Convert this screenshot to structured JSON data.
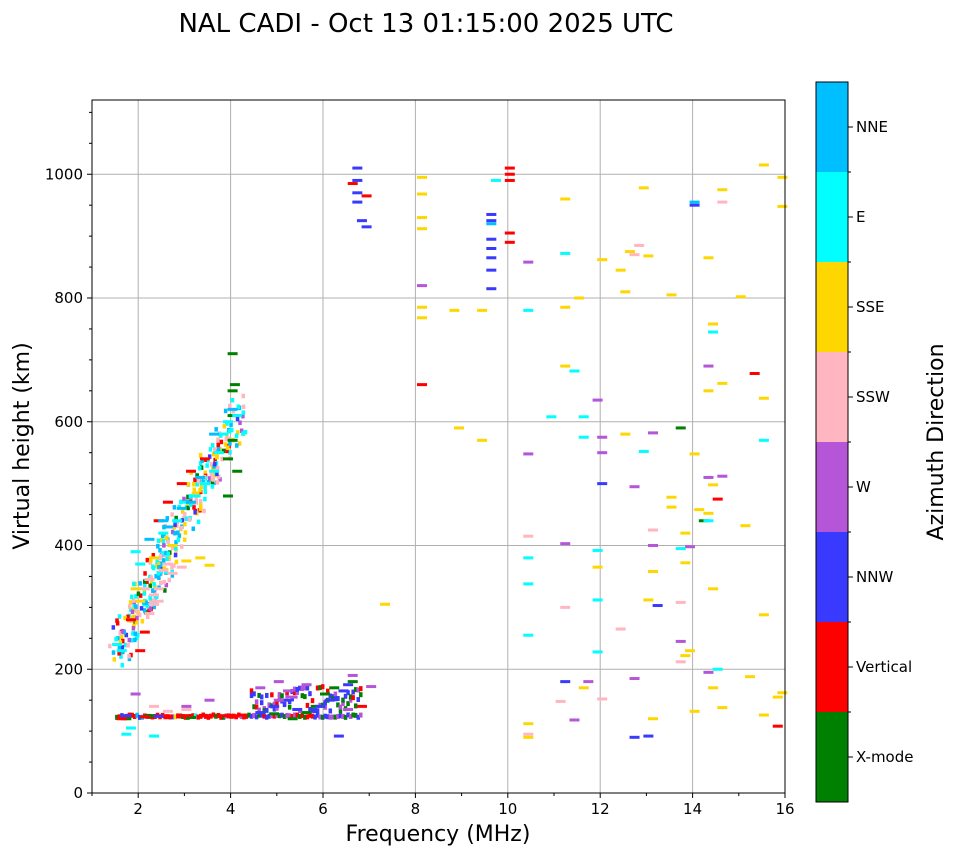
{
  "chart_data": {
    "type": "scatter",
    "title": "NAL CADI - Oct 13 01:15:00 2025 UTC",
    "xlabel": "Frequency (MHz)",
    "ylabel": "Virtual height (km)",
    "xlim": [
      1,
      16
    ],
    "ylim": [
      0,
      1120
    ],
    "xticks": [
      2,
      4,
      6,
      8,
      10,
      12,
      14,
      16
    ],
    "yticks": [
      0,
      200,
      400,
      600,
      800,
      1000
    ],
    "grid": true,
    "colorbar": {
      "label": "Azimuth Direction",
      "categories": [
        "X-mode",
        "Vertical",
        "NNW",
        "W",
        "SSW",
        "SSE",
        "E",
        "NNE"
      ],
      "colors": [
        "#008000",
        "#ff0000",
        "#3a3aff",
        "#b555d8",
        "#ffb6c1",
        "#ffd700",
        "#00ffff",
        "#00bfff"
      ]
    },
    "traces": [
      {
        "name": "E-layer trace",
        "f_start": 1.5,
        "f_end": 6.8,
        "h": 125
      },
      {
        "name": "F-layer trace",
        "f_start": 1.5,
        "f_end": 4.2,
        "h_start": 230,
        "h_end": 620
      }
    ],
    "series": [
      {
        "name": "X-mode",
        "points": [
          [
            4.0,
            710
          ],
          [
            4.05,
            660
          ],
          [
            4.0,
            650
          ],
          [
            4.0,
            610
          ],
          [
            4.0,
            570
          ],
          [
            3.9,
            540
          ],
          [
            4.1,
            520
          ],
          [
            3.9,
            480
          ],
          [
            5.3,
            120
          ],
          [
            5.6,
            130
          ],
          [
            5.8,
            140
          ],
          [
            6.0,
            160
          ],
          [
            6.2,
            170
          ],
          [
            6.6,
            180
          ],
          [
            13.7,
            590
          ],
          [
            14.2,
            440
          ],
          [
            1.7,
            120
          ],
          [
            2.2,
            125
          ],
          [
            3.1,
            122
          ],
          [
            4.9,
            128
          ]
        ]
      },
      {
        "name": "Vertical",
        "points": [
          [
            2.0,
            230
          ],
          [
            2.1,
            260
          ],
          [
            1.8,
            280
          ],
          [
            2.4,
            440
          ],
          [
            2.6,
            470
          ],
          [
            2.9,
            500
          ],
          [
            3.1,
            520
          ],
          [
            3.4,
            540
          ],
          [
            1.6,
            120
          ],
          [
            2.1,
            123
          ],
          [
            2.6,
            124
          ],
          [
            3.0,
            125
          ],
          [
            3.5,
            125
          ],
          [
            3.8,
            125
          ],
          [
            4.2,
            126
          ],
          [
            6.8,
            140
          ],
          [
            10.0,
            1010
          ],
          [
            10.0,
            1000
          ],
          [
            10.0,
            990
          ],
          [
            10.0,
            905
          ],
          [
            10.0,
            890
          ],
          [
            14.5,
            475
          ],
          [
            15.3,
            678
          ],
          [
            15.8,
            108
          ],
          [
            8.1,
            660
          ],
          [
            6.6,
            985
          ],
          [
            6.9,
            965
          ]
        ]
      },
      {
        "name": "NNW",
        "points": [
          [
            6.7,
            1010
          ],
          [
            6.7,
            990
          ],
          [
            6.7,
            970
          ],
          [
            6.7,
            955
          ],
          [
            6.8,
            925
          ],
          [
            6.9,
            915
          ],
          [
            9.6,
            935
          ],
          [
            9.6,
            925
          ],
          [
            9.6,
            895
          ],
          [
            9.6,
            880
          ],
          [
            9.6,
            865
          ],
          [
            9.6,
            845
          ],
          [
            9.6,
            815
          ],
          [
            13.0,
            92
          ],
          [
            12.7,
            90
          ],
          [
            13.2,
            303
          ],
          [
            14.0,
            950
          ],
          [
            6.3,
            92
          ],
          [
            4.6,
            130
          ],
          [
            4.9,
            140
          ],
          [
            5.1,
            150
          ],
          [
            5.4,
            135
          ],
          [
            5.9,
            140
          ],
          [
            6.1,
            150
          ],
          [
            6.4,
            165
          ],
          [
            6.5,
            175
          ],
          [
            1.7,
            125
          ],
          [
            2.4,
            124
          ],
          [
            12.0,
            500
          ],
          [
            11.2,
            180
          ]
        ]
      },
      {
        "name": "W",
        "points": [
          [
            3.5,
            150
          ],
          [
            4.6,
            170
          ],
          [
            5.0,
            180
          ],
          [
            5.2,
            165
          ],
          [
            5.6,
            175
          ],
          [
            5.3,
            155
          ],
          [
            5.0,
            150
          ],
          [
            6.6,
            190
          ],
          [
            6.5,
            135
          ],
          [
            7.0,
            172
          ],
          [
            8.1,
            820
          ],
          [
            10.4,
            858
          ],
          [
            10.4,
            548
          ],
          [
            11.2,
            403
          ],
          [
            11.7,
            180
          ],
          [
            11.4,
            118
          ],
          [
            11.9,
            635
          ],
          [
            12.0,
            575
          ],
          [
            12.0,
            550
          ],
          [
            12.7,
            495
          ],
          [
            12.7,
            185
          ],
          [
            13.1,
            400
          ],
          [
            13.1,
            582
          ],
          [
            13.7,
            245
          ],
          [
            13.9,
            398
          ],
          [
            14.3,
            690
          ],
          [
            14.3,
            510
          ],
          [
            14.3,
            195
          ],
          [
            14.6,
            512
          ],
          [
            1.9,
            160
          ],
          [
            3.0,
            140
          ]
        ]
      },
      {
        "name": "SSW",
        "points": [
          [
            2.1,
            330
          ],
          [
            2.2,
            345
          ],
          [
            2.3,
            320
          ],
          [
            2.4,
            310
          ],
          [
            2.5,
            360
          ],
          [
            2.6,
            370
          ],
          [
            2.3,
            305
          ],
          [
            2.7,
            355
          ],
          [
            2.9,
            365
          ],
          [
            2.2,
            290
          ],
          [
            2.4,
            330
          ],
          [
            2.3,
            140
          ],
          [
            2.6,
            132
          ],
          [
            3.0,
            135
          ],
          [
            10.4,
            415
          ],
          [
            11.2,
            300
          ],
          [
            12.0,
            152
          ],
          [
            12.4,
            265
          ],
          [
            12.8,
            885
          ],
          [
            13.1,
            425
          ],
          [
            13.7,
            212
          ],
          [
            13.7,
            308
          ],
          [
            14.6,
            955
          ],
          [
            10.4,
            95
          ],
          [
            11.1,
            148
          ],
          [
            12.7,
            870
          ]
        ]
      },
      {
        "name": "SSE",
        "points": [
          [
            1.9,
            330
          ],
          [
            2.0,
            310
          ],
          [
            2.3,
            380
          ],
          [
            2.7,
            400
          ],
          [
            3.0,
            375
          ],
          [
            3.3,
            380
          ],
          [
            3.5,
            368
          ],
          [
            7.3,
            305
          ],
          [
            8.1,
            995
          ],
          [
            8.1,
            968
          ],
          [
            8.1,
            930
          ],
          [
            8.1,
            912
          ],
          [
            8.1,
            785
          ],
          [
            8.1,
            768
          ],
          [
            8.8,
            780
          ],
          [
            9.4,
            780
          ],
          [
            8.9,
            590
          ],
          [
            9.4,
            570
          ],
          [
            11.2,
            960
          ],
          [
            11.2,
            785
          ],
          [
            11.2,
            690
          ],
          [
            11.5,
            800
          ],
          [
            11.9,
            365
          ],
          [
            11.6,
            170
          ],
          [
            10.4,
            90
          ],
          [
            10.4,
            112
          ],
          [
            12.0,
            862
          ],
          [
            12.4,
            845
          ],
          [
            12.5,
            810
          ],
          [
            12.5,
            580
          ],
          [
            12.6,
            875
          ],
          [
            12.9,
            978
          ],
          [
            13.0,
            868
          ],
          [
            13.0,
            312
          ],
          [
            13.1,
            358
          ],
          [
            13.1,
            120
          ],
          [
            13.5,
            805
          ],
          [
            13.5,
            478
          ],
          [
            13.5,
            462
          ],
          [
            13.8,
            372
          ],
          [
            13.8,
            420
          ],
          [
            13.8,
            222
          ],
          [
            14.0,
            548
          ],
          [
            14.0,
            132
          ],
          [
            14.3,
            865
          ],
          [
            14.3,
            650
          ],
          [
            14.3,
            452
          ],
          [
            14.4,
            758
          ],
          [
            14.4,
            498
          ],
          [
            14.4,
            330
          ],
          [
            14.4,
            170
          ],
          [
            14.6,
            975
          ],
          [
            14.6,
            662
          ],
          [
            15.0,
            802
          ],
          [
            15.1,
            432
          ],
          [
            15.2,
            188
          ],
          [
            15.5,
            1015
          ],
          [
            15.5,
            638
          ],
          [
            15.5,
            288
          ],
          [
            15.5,
            126
          ],
          [
            15.9,
            995
          ],
          [
            15.9,
            948
          ],
          [
            15.9,
            162
          ],
          [
            15.8,
            155
          ],
          [
            14.6,
            138
          ],
          [
            14.1,
            458
          ],
          [
            13.9,
            230
          ]
        ]
      },
      {
        "name": "E",
        "points": [
          [
            1.5,
            240
          ],
          [
            1.6,
            230
          ],
          [
            1.9,
            390
          ],
          [
            2.0,
            370
          ],
          [
            2.5,
            420
          ],
          [
            2.8,
            440
          ],
          [
            3.0,
            470
          ],
          [
            3.2,
            480
          ],
          [
            3.4,
            500
          ],
          [
            3.6,
            520
          ],
          [
            3.7,
            550
          ],
          [
            3.8,
            580
          ],
          [
            3.9,
            600
          ],
          [
            4.1,
            610
          ],
          [
            1.7,
            95
          ],
          [
            1.8,
            105
          ],
          [
            2.3,
            92
          ],
          [
            10.4,
            780
          ],
          [
            10.4,
            380
          ],
          [
            10.4,
            338
          ],
          [
            10.4,
            255
          ],
          [
            10.9,
            608
          ],
          [
            11.4,
            682
          ],
          [
            11.6,
            608
          ],
          [
            11.6,
            575
          ],
          [
            11.2,
            872
          ],
          [
            11.9,
            392
          ],
          [
            11.9,
            312
          ],
          [
            11.9,
            228
          ],
          [
            12.9,
            552
          ],
          [
            13.7,
            395
          ],
          [
            14.4,
            745
          ],
          [
            14.5,
            200
          ],
          [
            15.5,
            570
          ],
          [
            14.3,
            440
          ],
          [
            9.7,
            990
          ]
        ]
      },
      {
        "name": "NNE",
        "points": [
          [
            2.2,
            410
          ],
          [
            2.5,
            440
          ],
          [
            2.6,
            430
          ],
          [
            2.9,
            460
          ],
          [
            3.1,
            470
          ],
          [
            3.3,
            510
          ],
          [
            3.6,
            580
          ],
          [
            4.0,
            620
          ],
          [
            9.6,
            920
          ],
          [
            14.0,
            955
          ]
        ]
      }
    ]
  }
}
